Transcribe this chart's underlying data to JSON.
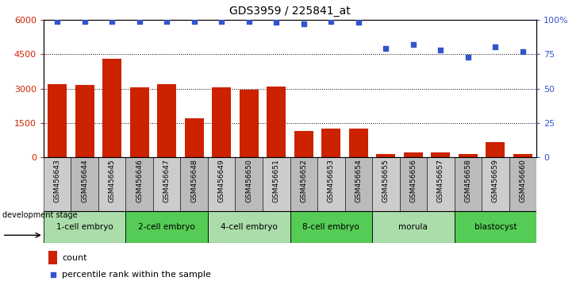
{
  "title": "GDS3959 / 225841_at",
  "samples": [
    "GSM456643",
    "GSM456644",
    "GSM456645",
    "GSM456646",
    "GSM456647",
    "GSM456648",
    "GSM456649",
    "GSM456650",
    "GSM456651",
    "GSM456652",
    "GSM456653",
    "GSM456654",
    "GSM456655",
    "GSM456656",
    "GSM456657",
    "GSM456658",
    "GSM456659",
    "GSM456660"
  ],
  "counts": [
    3200,
    3150,
    4300,
    3050,
    3200,
    1700,
    3050,
    2950,
    3100,
    1150,
    1250,
    1250,
    130,
    230,
    200,
    130,
    650,
    160
  ],
  "percentile_ranks": [
    99,
    99,
    99,
    99,
    99,
    99,
    99,
    99,
    98,
    97,
    99,
    98,
    79,
    82,
    78,
    73,
    80,
    77
  ],
  "stages": [
    {
      "label": "1-cell embryo",
      "start": 0,
      "end": 3,
      "color": "#aaddaa"
    },
    {
      "label": "2-cell embryo",
      "start": 3,
      "end": 6,
      "color": "#55cc55"
    },
    {
      "label": "4-cell embryo",
      "start": 6,
      "end": 9,
      "color": "#aaddaa"
    },
    {
      "label": "8-cell embryo",
      "start": 9,
      "end": 12,
      "color": "#55cc55"
    },
    {
      "label": "morula",
      "start": 12,
      "end": 15,
      "color": "#aaddaa"
    },
    {
      "label": "blastocyst",
      "start": 15,
      "end": 18,
      "color": "#55cc55"
    }
  ],
  "bar_color": "#cc2200",
  "dot_color": "#3355cc",
  "ylim_left": [
    0,
    6000
  ],
  "ylim_right": [
    0,
    100
  ],
  "yticks_left": [
    0,
    1500,
    3000,
    4500,
    6000
  ],
  "ytick_labels_left": [
    "0",
    "1500",
    "3000",
    "4500",
    "6000"
  ],
  "yticks_right": [
    0,
    25,
    50,
    75,
    100
  ],
  "ytick_labels_right": [
    "0",
    "25",
    "50",
    "75",
    "100%"
  ],
  "development_stage_label": "development stage",
  "legend_count_label": "count",
  "legend_percentile_label": "percentile rank within the sample",
  "sample_bg_color": "#cccccc",
  "sample_bg_color2": "#bbbbbb"
}
